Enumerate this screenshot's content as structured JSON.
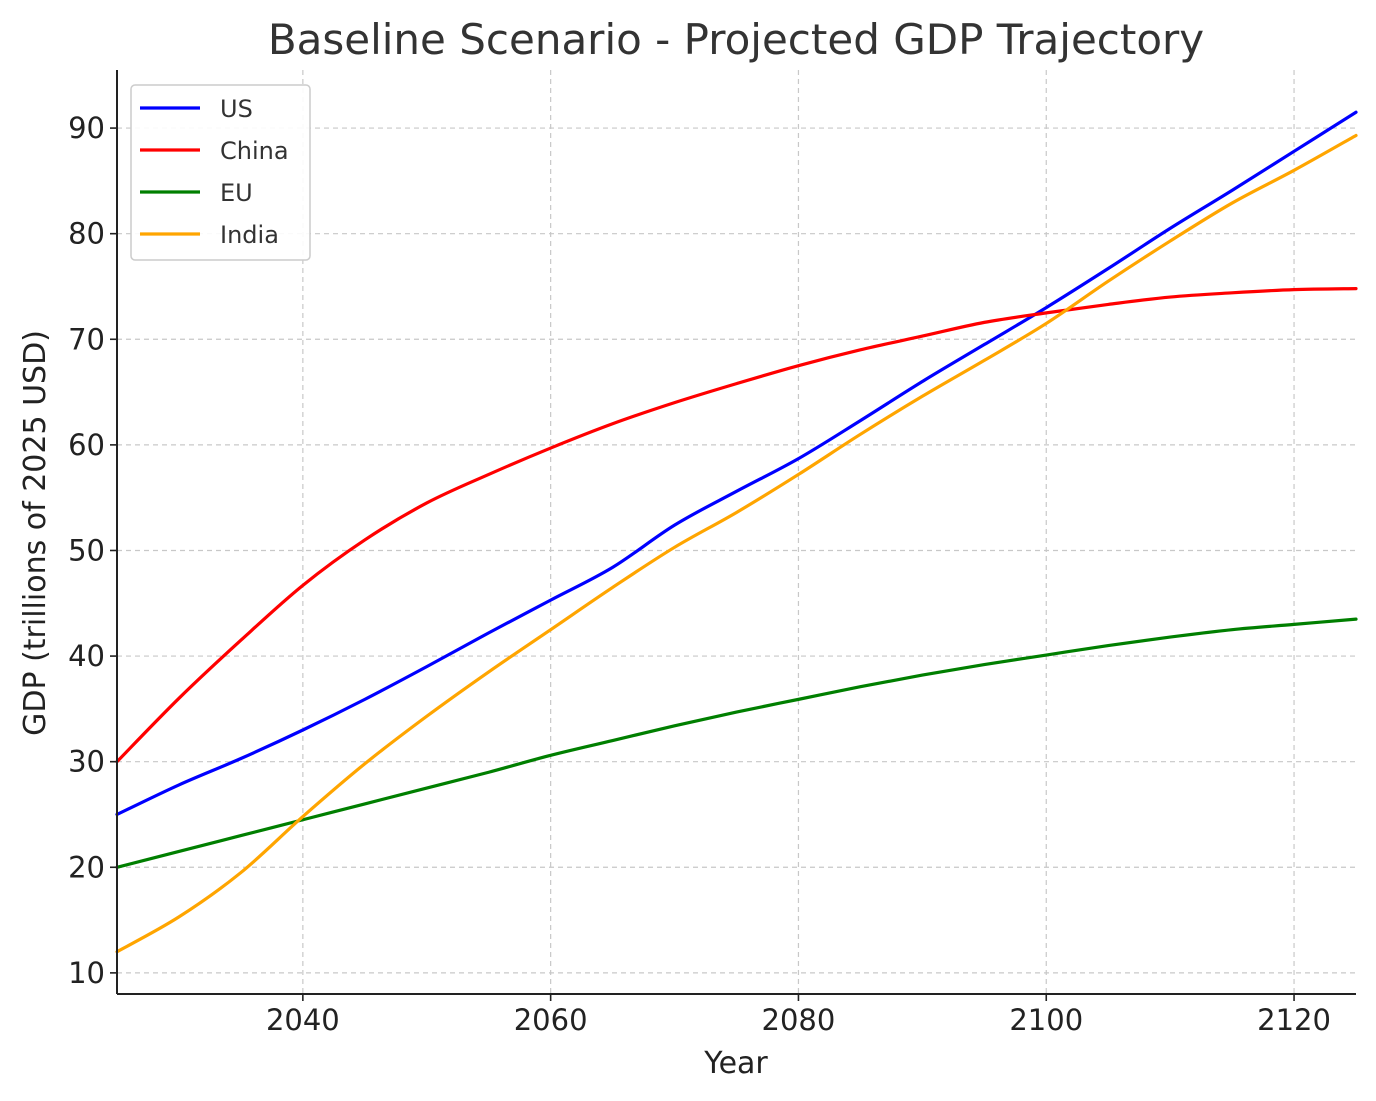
{
  "chart_data": {
    "type": "line",
    "title": "Baseline Scenario - Projected GDP Trajectory",
    "xlabel": "Year",
    "ylabel": "GDP (trillions of 2025 USD)",
    "xlim": [
      2025,
      2125
    ],
    "ylim": [
      8,
      95.5
    ],
    "xticks": [
      2040,
      2060,
      2080,
      2100,
      2120
    ],
    "yticks": [
      10,
      20,
      30,
      40,
      50,
      60,
      70,
      80,
      90
    ],
    "grid": true,
    "legend_position": "top-left",
    "x": [
      2025,
      2030,
      2035,
      2040,
      2045,
      2050,
      2055,
      2060,
      2065,
      2070,
      2075,
      2080,
      2085,
      2090,
      2095,
      2100,
      2105,
      2110,
      2115,
      2120,
      2125
    ],
    "series": [
      {
        "name": "US",
        "color": "#0000ff",
        "values": [
          25.0,
          27.8,
          30.3,
          33.0,
          35.9,
          39.0,
          42.2,
          45.3,
          48.4,
          52.4,
          55.6,
          58.7,
          62.3,
          66.0,
          69.5,
          73.0,
          76.7,
          80.5,
          84.1,
          87.8,
          91.5
        ]
      },
      {
        "name": "China",
        "color": "#ff0000",
        "values": [
          30.0,
          36.0,
          41.5,
          46.7,
          51.0,
          54.5,
          57.2,
          59.7,
          62.0,
          64.0,
          65.8,
          67.5,
          69.0,
          70.3,
          71.6,
          72.5,
          73.3,
          74.0,
          74.4,
          74.7,
          74.8
        ]
      },
      {
        "name": "EU",
        "color": "#007f00",
        "values": [
          20.0,
          21.5,
          23.0,
          24.5,
          26.0,
          27.5,
          29.0,
          30.6,
          32.0,
          33.4,
          34.7,
          35.9,
          37.1,
          38.2,
          39.2,
          40.1,
          41.0,
          41.8,
          42.5,
          43.0,
          43.5
        ]
      },
      {
        "name": "India",
        "color": "#ffa500",
        "values": [
          12.0,
          15.3,
          19.5,
          24.8,
          29.8,
          34.3,
          38.5,
          42.5,
          46.5,
          50.3,
          53.6,
          57.2,
          61.0,
          64.6,
          68.0,
          71.5,
          75.5,
          79.3,
          82.9,
          86.0,
          89.3
        ]
      }
    ]
  }
}
